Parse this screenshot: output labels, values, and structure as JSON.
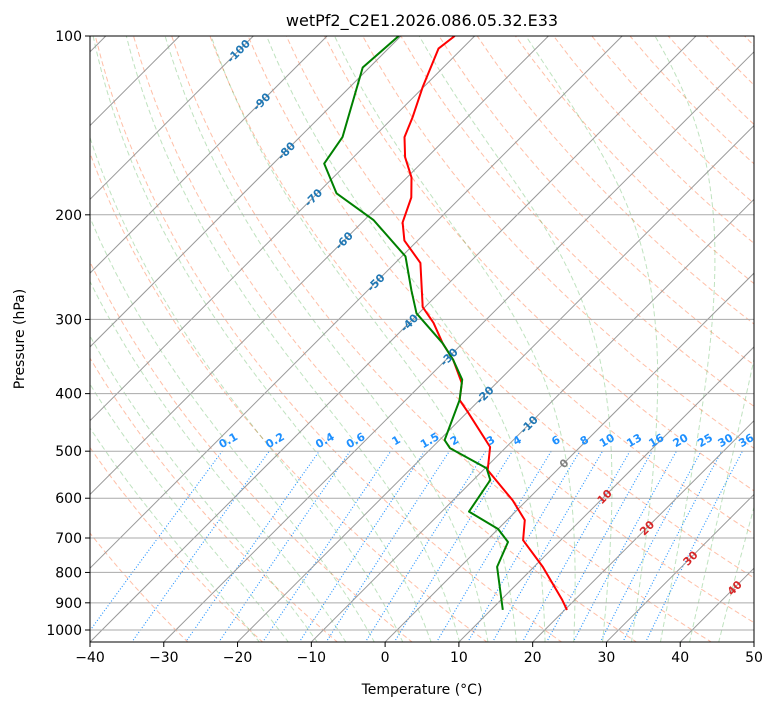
{
  "chart_data": {
    "type": "line",
    "subtype": "skew-t log-p",
    "title": "wetPf2_C2E1.2026.086.05.32.E33",
    "xlabel": "Temperature (°C)",
    "ylabel": "Pressure (hPa)",
    "xlim": [
      -40,
      50
    ],
    "ylim": [
      1050,
      100
    ],
    "xticks": [
      "−40",
      "−30",
      "−20",
      "−10",
      "0",
      "10",
      "20",
      "30",
      "40",
      "50"
    ],
    "xtick_values": [
      -40,
      -30,
      -20,
      -10,
      0,
      10,
      20,
      30,
      40,
      50
    ],
    "yticks": [
      "100",
      "200",
      "300",
      "400",
      "500",
      "600",
      "700",
      "800",
      "900",
      "1000"
    ],
    "ytick_values": [
      100,
      200,
      300,
      400,
      500,
      600,
      700,
      800,
      900,
      1000
    ],
    "grid": true,
    "isotherm_labels": [
      {
        "t": -100,
        "text": "-100"
      },
      {
        "t": -90,
        "text": "-90"
      },
      {
        "t": -80,
        "text": "-80"
      },
      {
        "t": -70,
        "text": "-70"
      },
      {
        "t": -60,
        "text": "-60"
      },
      {
        "t": -50,
        "text": "-50"
      },
      {
        "t": -40,
        "text": "-40"
      },
      {
        "t": -30,
        "text": "-30"
      },
      {
        "t": -20,
        "text": "-20"
      },
      {
        "t": -10,
        "text": "-10"
      },
      {
        "t": 0,
        "text": "0"
      },
      {
        "t": 10,
        "text": "10"
      },
      {
        "t": 20,
        "text": "20"
      },
      {
        "t": 30,
        "text": "30"
      },
      {
        "t": 40,
        "text": "40"
      }
    ],
    "mixing_ratio_labels": [
      "0.1",
      "0.2",
      "0.4",
      "0.6",
      "1",
      "1.5",
      "2",
      "3",
      "4",
      "6",
      "8",
      "10",
      "13",
      "16",
      "20",
      "25",
      "30",
      "36"
    ],
    "mixing_ratio_values": [
      0.1,
      0.2,
      0.4,
      0.6,
      1,
      1.5,
      2,
      3,
      4,
      6,
      8,
      10,
      13,
      16,
      20,
      25,
      30,
      36
    ],
    "series": [
      {
        "name": "Temperature",
        "color": "#ff0000",
        "p": [
          925,
          890,
          783,
          706,
          653,
          605,
          538,
          492,
          430,
          410,
          384,
          351,
          329,
          304,
          286,
          241,
          221,
          206,
          187,
          173,
          160,
          148,
          137,
          122,
          105,
          100
        ],
        "t": [
          20.3,
          18.3,
          11.2,
          4.9,
          2.4,
          -1.9,
          -9.4,
          -12.2,
          -19.9,
          -22.7,
          -24.7,
          -29.0,
          -32.7,
          -36.7,
          -40.3,
          -46.6,
          -51.8,
          -54.5,
          -56.7,
          -59.4,
          -63.0,
          -65.8,
          -67.4,
          -70.1,
          -73.2,
          -72.7
        ]
      },
      {
        "name": "Dewpoint",
        "color": "#008000",
        "p": [
          925,
          783,
          711,
          676,
          632,
          559,
          534,
          494,
          479,
          410,
          379,
          351,
          329,
          293,
          268,
          235,
          204,
          184,
          164,
          148,
          113,
          100
        ],
        "t": [
          11.6,
          5.0,
          3.1,
          0.0,
          -6.3,
          -7.7,
          -9.8,
          -17.5,
          -19.3,
          -22.7,
          -25.1,
          -29.0,
          -32.7,
          -40.3,
          -44.1,
          -49.5,
          -58.8,
          -67.4,
          -73.1,
          -74.2,
          -80.9,
          -80.3
        ]
      }
    ],
    "colors": {
      "dry_adiabat": "#ff7f50",
      "moist_adiabat": "#2ca02c",
      "mixing_ratio": "#1e90ff",
      "isotherm_label_cold": "#1f77b4",
      "isotherm_label_zero": "#808080",
      "isotherm_label_warm": "#d62728"
    }
  }
}
